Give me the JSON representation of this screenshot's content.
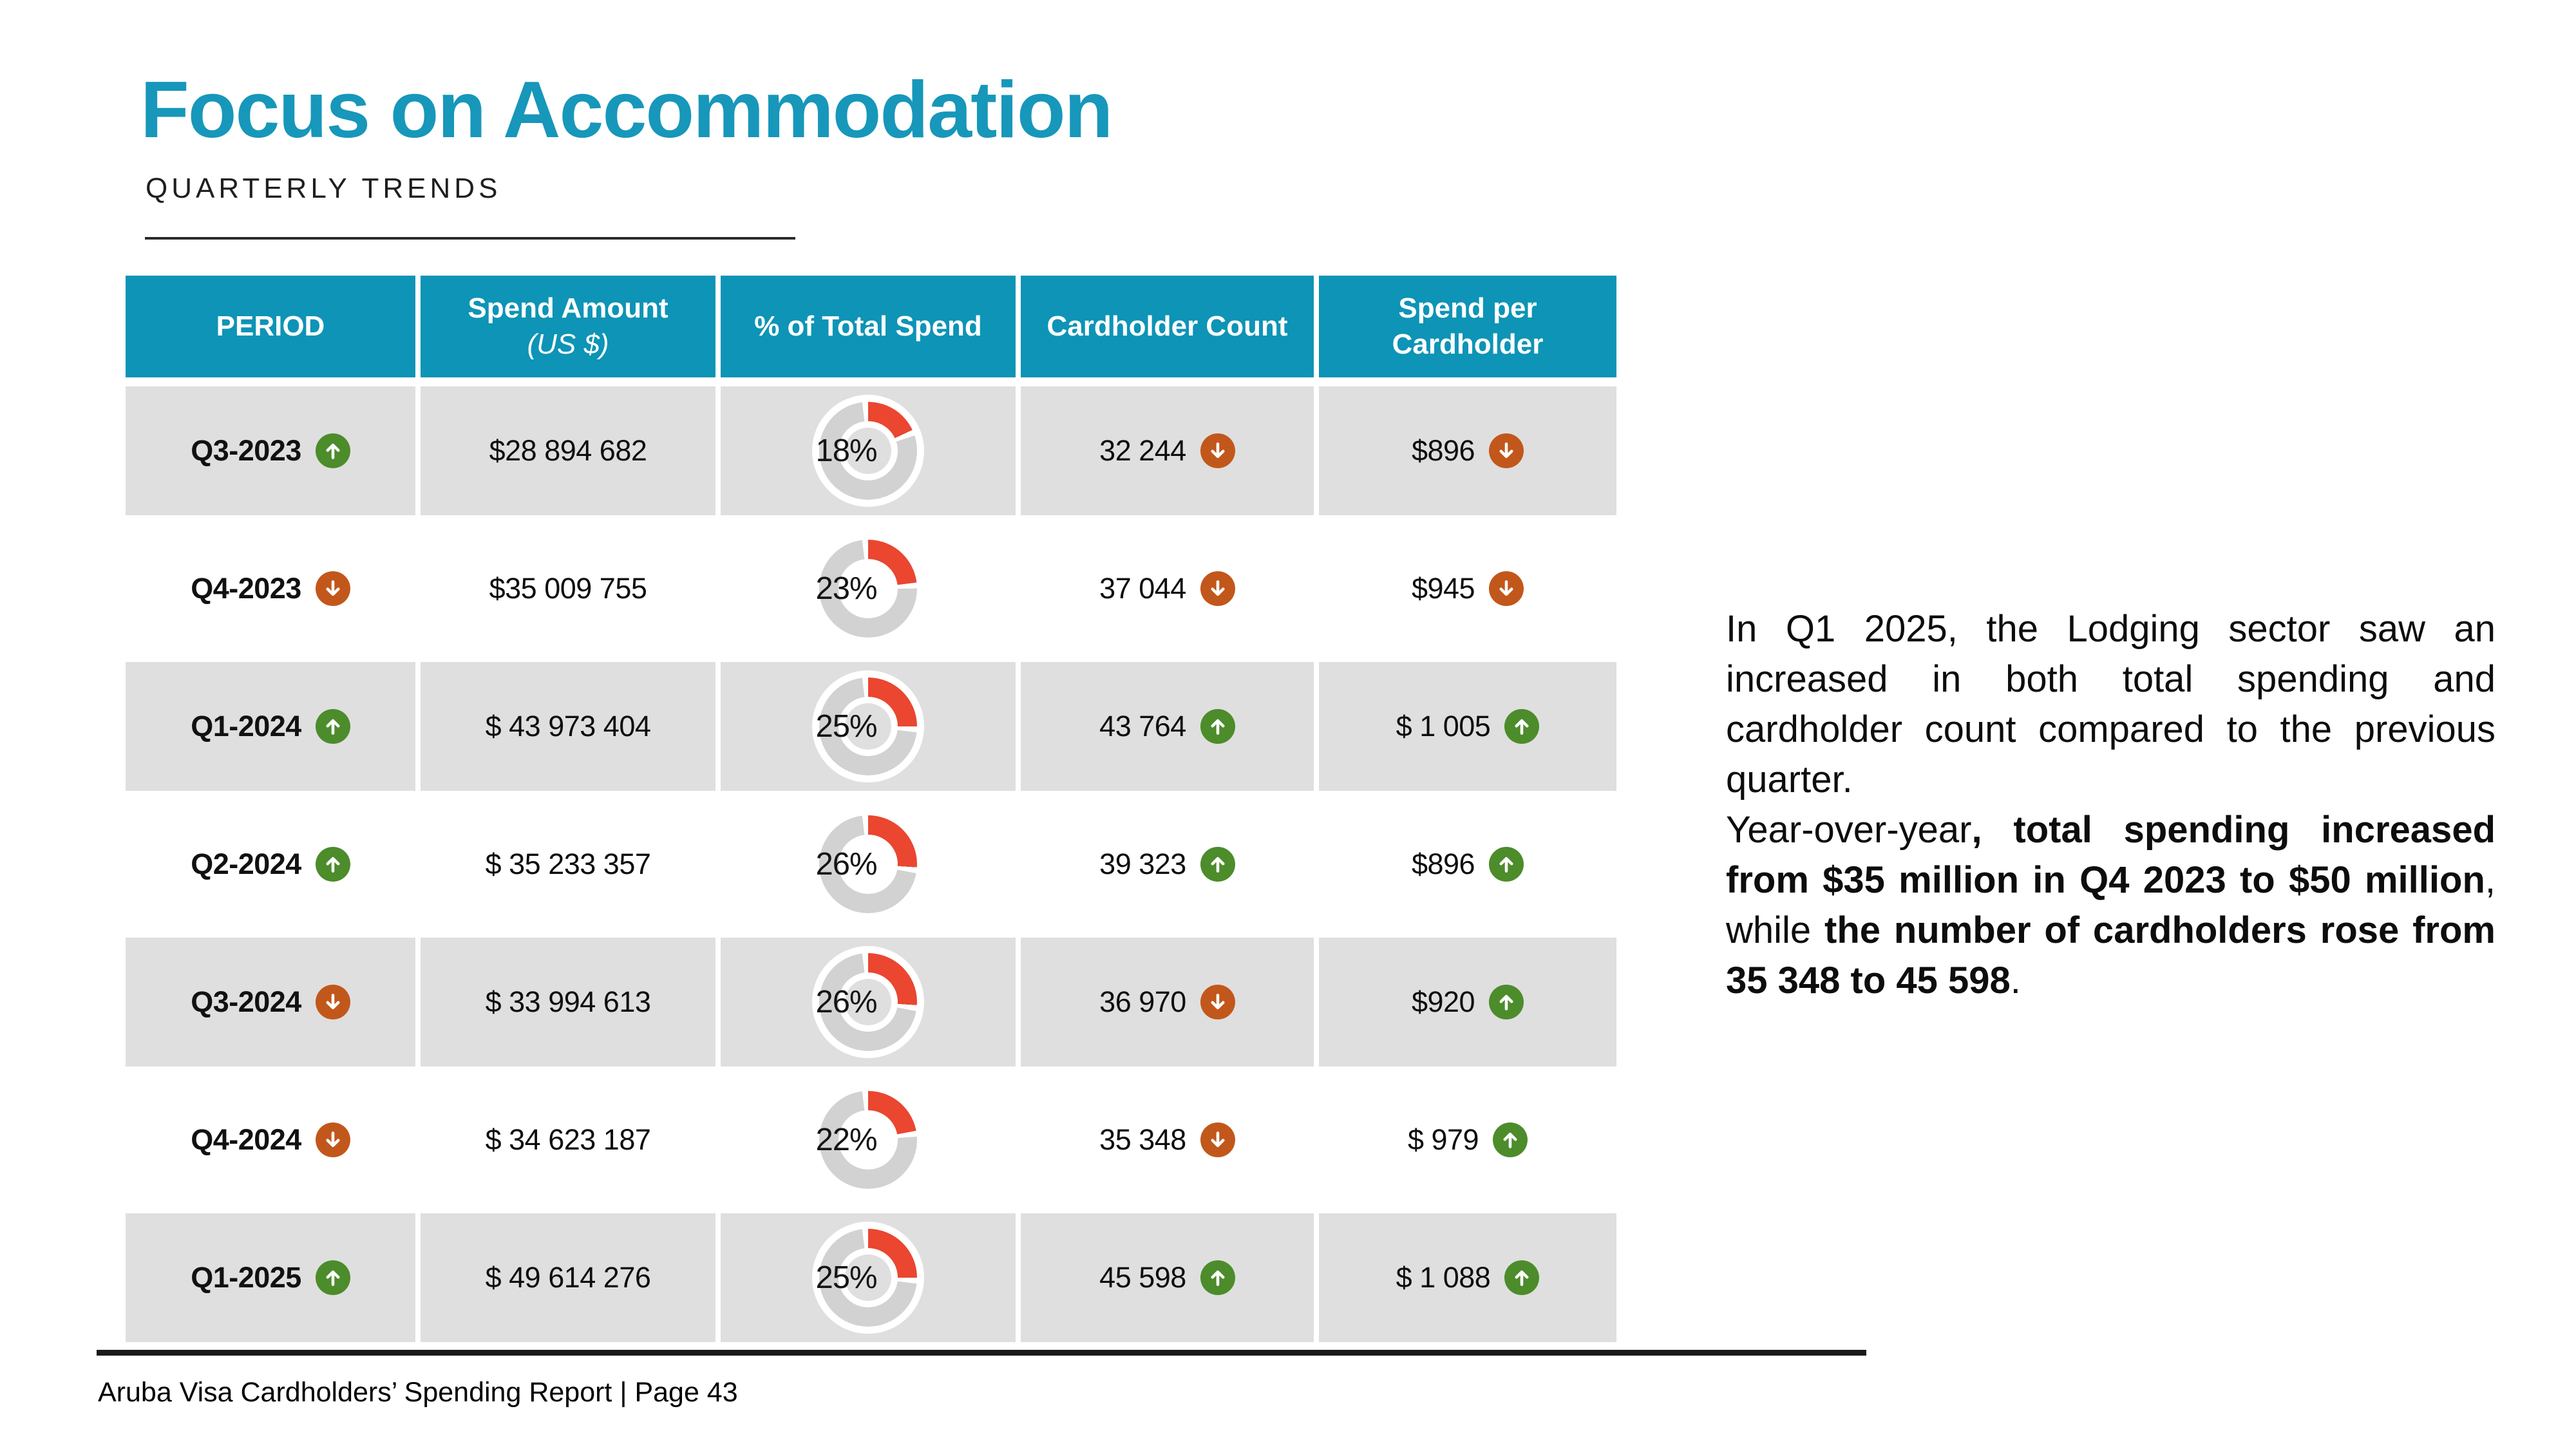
{
  "slide": {
    "title": "Focus on Accommodation",
    "subtitle": "QUARTERLY TRENDS",
    "footer": "Aruba Visa Cardholders’ Spending Report | Page 43"
  },
  "colors": {
    "title_teal": "#1797BA",
    "header_teal": "#0D94B6",
    "row_gray": "#DFDFDF",
    "donut_ring_gray": "#D2D2D2",
    "donut_red": "#EA4630",
    "trend_up_green": "#4C8C2B",
    "trend_down_orange": "#C2571B"
  },
  "table": {
    "headers": [
      {
        "lines": [
          "PERIOD"
        ]
      },
      {
        "lines": [
          "Spend Amount",
          "(US $)"
        ]
      },
      {
        "lines": [
          "% of Total Spend"
        ]
      },
      {
        "lines": [
          "Cardholder Count"
        ]
      },
      {
        "lines": [
          "Spend per",
          "Cardholder"
        ]
      }
    ],
    "rows": [
      {
        "period": "Q3-2023",
        "period_trend": "up",
        "spend": "$28 894 682",
        "pct": 18,
        "pct_label": "18%",
        "cardholders": "32 244",
        "cardholders_trend": "down",
        "spend_per": "$896",
        "spend_per_trend": "down"
      },
      {
        "period": "Q4-2023",
        "period_trend": "down",
        "spend": "$35 009 755",
        "pct": 23,
        "pct_label": "23%",
        "cardholders": "37 044",
        "cardholders_trend": "down",
        "spend_per": "$945",
        "spend_per_trend": "down"
      },
      {
        "period": "Q1-2024",
        "period_trend": "up",
        "spend": "$ 43 973 404",
        "pct": 25,
        "pct_label": "25%",
        "cardholders": "43 764",
        "cardholders_trend": "up",
        "spend_per": "$ 1 005",
        "spend_per_trend": "up"
      },
      {
        "period": "Q2-2024",
        "period_trend": "up",
        "spend": "$ 35 233 357",
        "pct": 26,
        "pct_label": "26%",
        "cardholders": "39 323",
        "cardholders_trend": "up",
        "spend_per": "$896",
        "spend_per_trend": "up"
      },
      {
        "period": "Q3-2024",
        "period_trend": "down",
        "spend": "$ 33 994 613",
        "pct": 26,
        "pct_label": "26%",
        "cardholders": "36 970",
        "cardholders_trend": "down",
        "spend_per": "$920",
        "spend_per_trend": "up"
      },
      {
        "period": "Q4-2024",
        "period_trend": "down",
        "spend": "$ 34 623 187",
        "pct": 22,
        "pct_label": "22%",
        "cardholders": "35 348",
        "cardholders_trend": "down",
        "spend_per": "$ 979",
        "spend_per_trend": "up"
      },
      {
        "period": "Q1-2025",
        "period_trend": "up",
        "spend": "$ 49 614 276",
        "pct": 25,
        "pct_label": "25%",
        "cardholders": "45 598",
        "cardholders_trend": "up",
        "spend_per": "$ 1 088",
        "spend_per_trend": "up"
      }
    ]
  },
  "chart_data": {
    "type": "bar",
    "title": "% of Total Spend by quarter (donut indicators)",
    "categories": [
      "Q3-2023",
      "Q4-2023",
      "Q1-2024",
      "Q2-2024",
      "Q3-2024",
      "Q4-2024",
      "Q1-2025"
    ],
    "values": [
      18,
      23,
      25,
      26,
      26,
      22,
      25
    ],
    "xlabel": "PERIOD",
    "ylabel": "% of Total Spend",
    "ylim": [
      0,
      100
    ]
  },
  "commentary": {
    "p1": "In Q1 2025, the Lodging sector saw an increased in both total spending and cardholder count compared to the previous quarter.",
    "p2_segments": [
      {
        "text": "Year-over-year",
        "bold": false
      },
      {
        "text": ", total spending increased from $35 million in Q4 2023 to $50 million",
        "bold": true
      },
      {
        "text": ", while ",
        "bold": false
      },
      {
        "text": "the number of cardholders rose from 35 348 to 45 598",
        "bold": true
      },
      {
        "text": ".",
        "bold": false
      }
    ]
  }
}
